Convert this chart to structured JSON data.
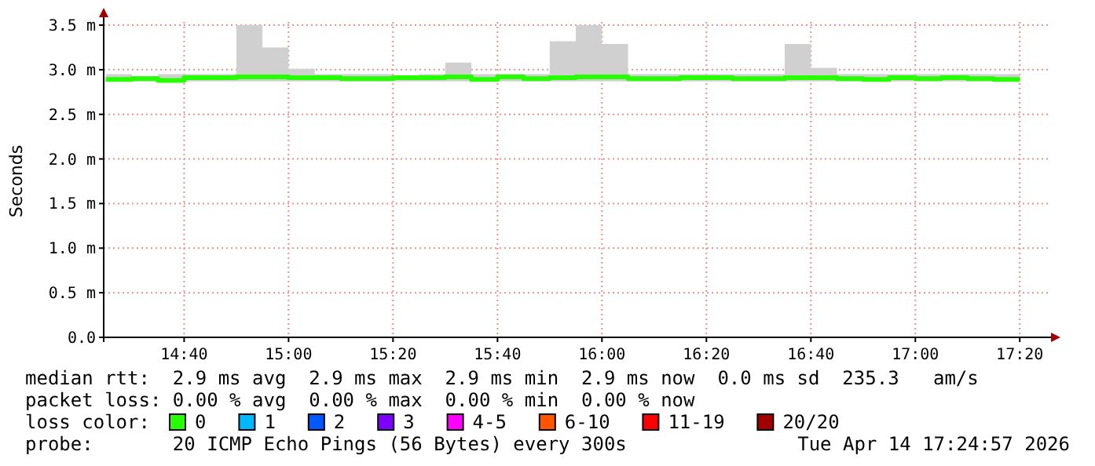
{
  "chart_data": {
    "type": "step",
    "ylabel": "Seconds",
    "x": [
      14.4167,
      14.5,
      14.5833,
      14.6667,
      14.75,
      14.8333,
      14.9167,
      15,
      15.0833,
      15.1667,
      15.25,
      15.3333,
      15.4167,
      15.5,
      15.5833,
      15.6667,
      15.75,
      15.8333,
      15.9167,
      16,
      16.0833,
      16.1667,
      16.25,
      16.3333,
      16.4167,
      16.5,
      16.5833,
      16.6667,
      16.75,
      16.8333,
      16.9167,
      17,
      17.0833,
      17.1667,
      17.25,
      17.3333
    ],
    "series": [
      {
        "name": "0",
        "color": "#26ff00",
        "values": [
          2.89,
          2.9,
          2.88,
          2.91,
          2.91,
          2.92,
          2.92,
          2.91,
          2.91,
          2.9,
          2.9,
          2.91,
          2.91,
          2.92,
          2.89,
          2.92,
          2.9,
          2.91,
          2.92,
          2.92,
          2.9,
          2.9,
          2.91,
          2.91,
          2.9,
          2.9,
          2.91,
          2.91,
          2.9,
          2.89,
          2.91,
          2.9,
          2.91,
          2.9,
          2.89,
          2.89
        ],
        "lower": [
          2.87,
          2.87,
          2.87,
          2.87,
          2.87,
          2.87,
          2.87,
          2.87,
          2.87,
          2.87,
          2.87,
          2.87,
          2.87,
          2.87,
          2.87,
          2.87,
          2.87,
          2.87,
          2.87,
          2.87,
          2.87,
          2.87,
          2.87,
          2.87,
          2.87,
          2.87,
          2.87,
          2.87,
          2.87,
          2.87,
          2.87,
          2.87,
          2.87,
          2.87,
          2.87,
          2.87
        ],
        "upper": [
          2.95,
          2.93,
          2.95,
          2.95,
          2.95,
          3.5,
          3.25,
          3.01,
          2.95,
          2.95,
          2.95,
          2.93,
          2.95,
          3.08,
          2.95,
          2.95,
          2.95,
          3.32,
          3.5,
          3.29,
          2.95,
          2.95,
          2.95,
          2.95,
          2.95,
          2.95,
          3.29,
          3.02,
          2.95,
          2.95,
          2.95,
          2.95,
          2.95,
          2.95,
          2.95,
          2.95
        ]
      },
      {
        "name": "1",
        "color": "#00b8ff",
        "values": [
          null,
          null,
          null,
          null,
          null,
          null,
          null,
          null,
          null,
          null,
          null,
          null,
          null,
          null,
          null,
          null,
          null,
          null,
          null,
          null,
          null,
          null,
          null,
          null,
          null,
          null,
          null,
          null,
          null,
          null,
          null,
          null,
          null,
          null,
          null,
          null
        ]
      },
      {
        "name": "2",
        "color": "#0059ff",
        "values": [
          null,
          null,
          null,
          null,
          null,
          null,
          null,
          null,
          null,
          null,
          null,
          null,
          null,
          null,
          null,
          null,
          null,
          null,
          null,
          null,
          null,
          null,
          null,
          null,
          null,
          null,
          null,
          null,
          null,
          null,
          null,
          null,
          null,
          null,
          null,
          null
        ]
      },
      {
        "name": "3",
        "color": "#7e00ff",
        "values": [
          null,
          null,
          null,
          null,
          null,
          null,
          null,
          null,
          null,
          null,
          null,
          null,
          null,
          null,
          null,
          null,
          null,
          null,
          null,
          null,
          null,
          null,
          null,
          null,
          null,
          null,
          null,
          null,
          null,
          null,
          null,
          null,
          null,
          null,
          null,
          null
        ]
      },
      {
        "name": "4-5",
        "color": "#ff00ff",
        "values": [
          null,
          null,
          null,
          null,
          null,
          null,
          null,
          null,
          null,
          null,
          null,
          null,
          null,
          null,
          null,
          null,
          null,
          null,
          null,
          null,
          null,
          null,
          null,
          null,
          null,
          null,
          null,
          null,
          null,
          null,
          null,
          null,
          null,
          null,
          null,
          null
        ]
      },
      {
        "name": "6-10",
        "color": "#ff5500",
        "values": [
          null,
          null,
          null,
          null,
          null,
          null,
          null,
          null,
          null,
          null,
          null,
          null,
          null,
          null,
          null,
          null,
          null,
          null,
          null,
          null,
          null,
          null,
          null,
          null,
          null,
          null,
          null,
          null,
          null,
          null,
          null,
          null,
          null,
          null,
          null,
          null
        ]
      },
      {
        "name": "11-19",
        "color": "#ff0000",
        "values": [
          null,
          null,
          null,
          null,
          null,
          null,
          null,
          null,
          null,
          null,
          null,
          null,
          null,
          null,
          null,
          null,
          null,
          null,
          null,
          null,
          null,
          null,
          null,
          null,
          null,
          null,
          null,
          null,
          null,
          null,
          null,
          null,
          null,
          null,
          null,
          null
        ]
      },
      {
        "name": "20/20",
        "color": "#a10000",
        "values": [
          null,
          null,
          null,
          null,
          null,
          null,
          null,
          null,
          null,
          null,
          null,
          null,
          null,
          null,
          null,
          null,
          null,
          null,
          null,
          null,
          null,
          null,
          null,
          null,
          null,
          null,
          null,
          null,
          null,
          null,
          null,
          null,
          null,
          null,
          null,
          null
        ]
      }
    ],
    "xlim": [
      14.41,
      17.433
    ],
    "xticks": [
      {
        "value": 14.6667,
        "label": "14:40"
      },
      {
        "value": 15,
        "label": "15:00"
      },
      {
        "value": 15.3333,
        "label": "15:20"
      },
      {
        "value": 15.6667,
        "label": "15:40"
      },
      {
        "value": 16,
        "label": "16:00"
      },
      {
        "value": 16.3333,
        "label": "16:20"
      },
      {
        "value": 16.6667,
        "label": "16:40"
      },
      {
        "value": 17,
        "label": "17:00"
      },
      {
        "value": 17.3333,
        "label": "17:20"
      }
    ],
    "ylim": [
      0,
      3.5
    ],
    "yticks": [
      {
        "value": 0,
        "label": "0.0"
      },
      {
        "value": 0.5,
        "label": "0.5 m"
      },
      {
        "value": 1,
        "label": "1.0 m"
      },
      {
        "value": 1.5,
        "label": "1.5 m"
      },
      {
        "value": 2,
        "label": "2.0 m"
      },
      {
        "value": 2.5,
        "label": "2.5 m"
      },
      {
        "value": 3,
        "label": "3.0 m"
      },
      {
        "value": 3.5,
        "label": "3.5 m"
      }
    ],
    "grid": true,
    "legend": "bottom",
    "legend_title": "loss color:",
    "annotations": [
      "median rtt:  2.9 ms avg  2.9 ms max  2.9 ms min  2.9 ms now  0.0 ms sd  235.3   am/s",
      "packet loss: 0.00 % avg  0.00 % max  0.00 % min  0.00 % now",
      "probe:       20 ICMP Echo Pings (56 Bytes) every 300s",
      "Tue Apr 14 17:24:57 2026"
    ]
  }
}
